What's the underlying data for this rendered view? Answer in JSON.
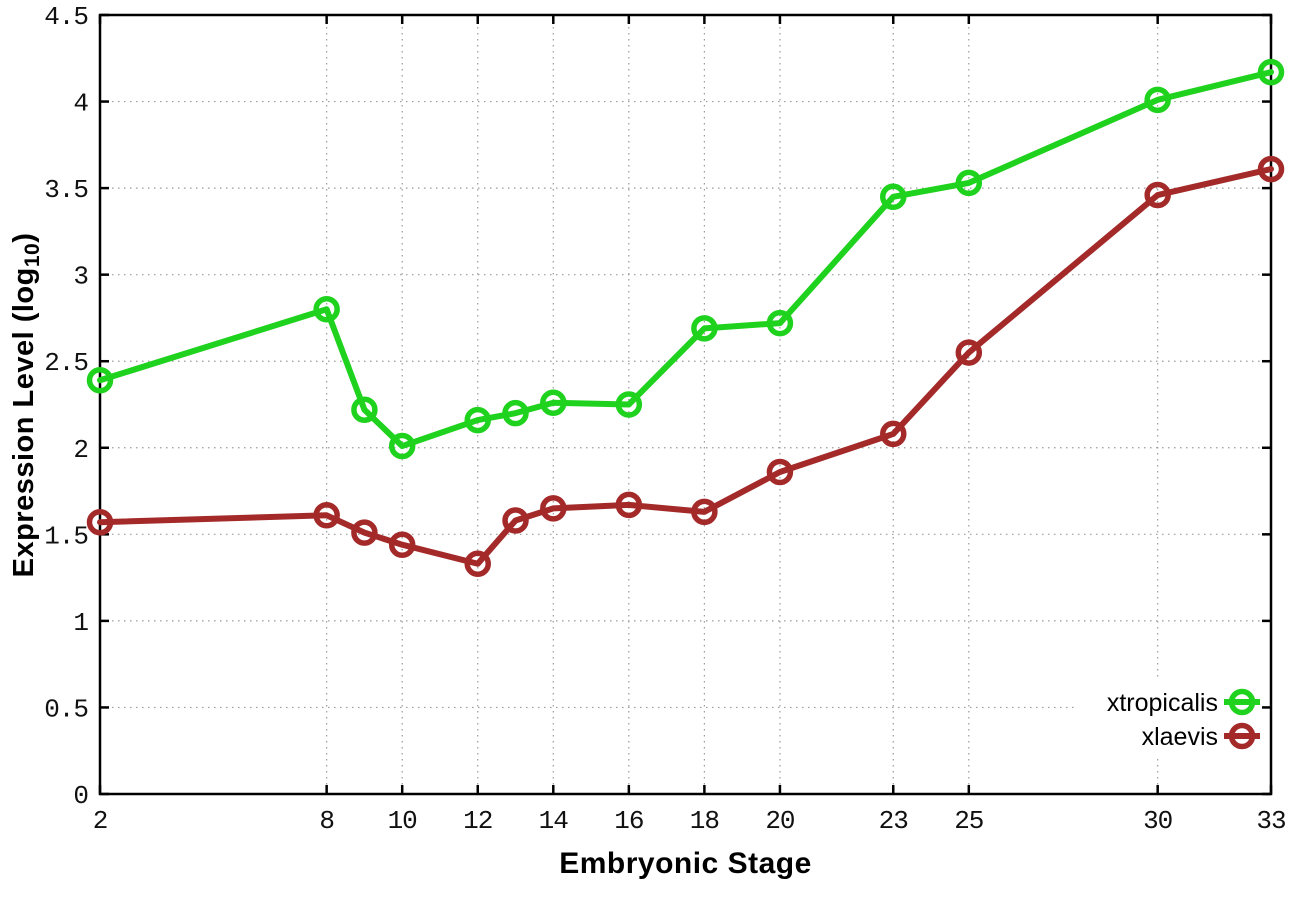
{
  "figure": {
    "xlabel": "Embryonic Stage",
    "ylabel_prefix": "Expression Level (log",
    "ylabel_sub": "10",
    "ylabel_suffix": ")"
  },
  "chart_data": {
    "type": "line",
    "title": "",
    "xlabel": "Embryonic Stage",
    "ylabel": "Expression Level (log10)",
    "xlim": [
      2,
      33
    ],
    "ylim": [
      0,
      4.5
    ],
    "grid": true,
    "grid_style": "dotted",
    "legend_position": "bottom-right",
    "x": [
      2,
      8,
      9,
      10,
      12,
      13,
      14,
      16,
      18,
      20,
      23,
      25,
      30,
      33
    ],
    "xticks": {
      "values": [
        2,
        8,
        10,
        12,
        14,
        16,
        18,
        20,
        23,
        25,
        30,
        33
      ],
      "labels": [
        "2",
        "8",
        "10",
        "12",
        "14",
        "16",
        "18",
        "20",
        "23",
        "25",
        "30",
        "33"
      ]
    },
    "yticks": {
      "values": [
        0,
        0.5,
        1,
        1.5,
        2,
        2.5,
        3,
        3.5,
        4,
        4.5
      ],
      "labels": [
        "0",
        "0.5",
        "1",
        "1.5",
        "2",
        "2.5",
        "3",
        "3.5",
        "4",
        "4.5"
      ]
    },
    "series": [
      {
        "name": "xtropicalis",
        "color": "#1ed21e",
        "marker": "open-circle",
        "values": [
          2.39,
          2.8,
          2.22,
          2.01,
          2.16,
          2.2,
          2.26,
          2.25,
          2.69,
          2.72,
          3.45,
          3.53,
          4.01,
          4.17
        ]
      },
      {
        "name": "xlaevis",
        "color": "#a42a2a",
        "marker": "open-circle",
        "values": [
          1.57,
          1.61,
          1.51,
          1.44,
          1.33,
          1.58,
          1.65,
          1.67,
          1.63,
          1.86,
          2.08,
          2.55,
          3.46,
          3.61
        ]
      }
    ],
    "colors": {
      "axis": "#000000",
      "grid": "#9a9a9a",
      "background": "#ffffff"
    }
  }
}
